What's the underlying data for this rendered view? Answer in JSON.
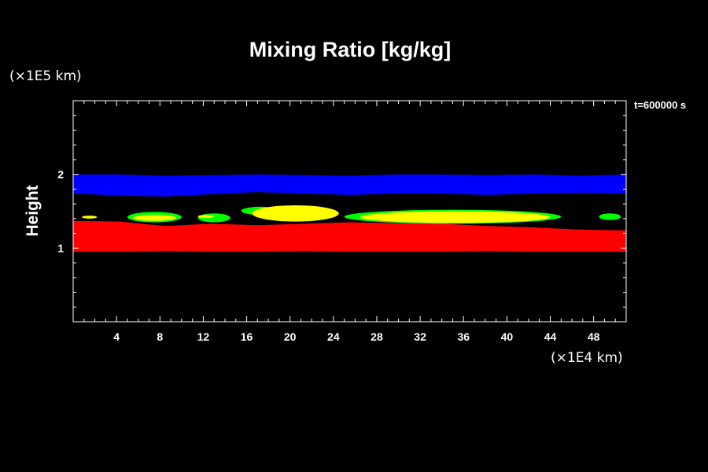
{
  "chart_data": {
    "type": "heatmap",
    "title": "Mixing Ratio [kg/kg]",
    "xlabel": "",
    "ylabel": "Height",
    "x_unit": "(×1E4 km)",
    "y_unit": "(×1E5 km)",
    "timestamp": "t=600000 s",
    "xlim": [
      0,
      51
    ],
    "ylim": [
      0,
      3
    ],
    "x_ticks": [
      4,
      8,
      12,
      16,
      20,
      24,
      28,
      32,
      36,
      40,
      44,
      48
    ],
    "y_ticks": [
      1,
      2
    ],
    "grid": false,
    "background_color": "#000000",
    "bands": [
      {
        "color": "#0000ff",
        "x": [
          0,
          51
        ],
        "y_bottom": [
          1.74,
          1.71,
          1.7,
          1.73,
          1.76,
          1.74,
          1.72,
          1.74,
          1.74,
          1.72,
          1.74,
          1.75,
          1.74
        ],
        "y_top": [
          2.0,
          2.0,
          1.98,
          1.99,
          2.0,
          1.99,
          1.98,
          2.0,
          2.0,
          1.99,
          2.0,
          1.98,
          2.0
        ]
      },
      {
        "color": "#ff0000",
        "x": [
          0,
          51
        ],
        "y_bottom": [
          0.95,
          0.95,
          0.96,
          0.95,
          0.95,
          0.96,
          0.95,
          0.95,
          0.95,
          0.96,
          0.95,
          0.95,
          0.95
        ],
        "y_top": [
          1.37,
          1.36,
          1.3,
          1.33,
          1.31,
          1.33,
          1.35,
          1.34,
          1.33,
          1.3,
          1.28,
          1.25,
          1.24
        ]
      }
    ],
    "patches": [
      {
        "color": "#00ff00",
        "x": [
          5.0,
          10.0
        ],
        "y": [
          1.35,
          1.49
        ]
      },
      {
        "color": "#00ff00",
        "x": [
          11.5,
          14.5
        ],
        "y": [
          1.35,
          1.47
        ]
      },
      {
        "color": "#00ff00",
        "x": [
          15.5,
          19.0
        ],
        "y": [
          1.45,
          1.56
        ]
      },
      {
        "color": "#00ff00",
        "x": [
          25.0,
          45.0
        ],
        "y": [
          1.33,
          1.52
        ]
      },
      {
        "color": "#00ff00",
        "x": [
          48.5,
          50.5
        ],
        "y": [
          1.38,
          1.47
        ]
      },
      {
        "color": "#ffff00",
        "x": [
          5.5,
          9.5
        ],
        "y": [
          1.37,
          1.45
        ]
      },
      {
        "color": "#ffff00",
        "x": [
          16.5,
          24.5
        ],
        "y": [
          1.36,
          1.58
        ]
      },
      {
        "color": "#ffff00",
        "x": [
          26.5,
          44.0
        ],
        "y": [
          1.34,
          1.5
        ]
      },
      {
        "color": "#ffff00",
        "x": [
          0.8,
          2.2
        ],
        "y": [
          1.4,
          1.44
        ]
      },
      {
        "color": "#ffff00",
        "x": [
          11.5,
          13.0
        ],
        "y": [
          1.41,
          1.45
        ]
      }
    ]
  }
}
